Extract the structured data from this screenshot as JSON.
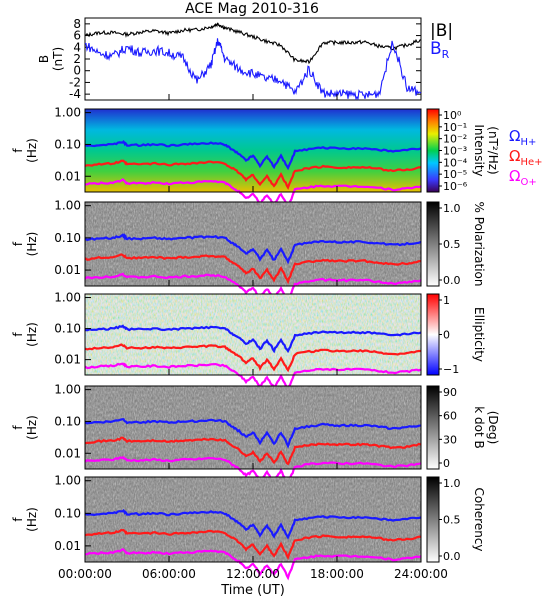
{
  "figure": {
    "title": "ACE Mag 2010-316"
  },
  "colors": {
    "black": "#000000",
    "blue": "#1a1aff",
    "red": "#ff1a1a",
    "magenta": "#ff00ff"
  },
  "chart_data": [
    {
      "type": "line",
      "panel": "B",
      "ylabel": "B",
      "ylabel_unit": "(nT)",
      "ylim": [
        -5,
        9
      ],
      "yticks": [
        "8",
        "6",
        "4",
        "2",
        "0",
        "-2",
        "-4"
      ],
      "xlim": [
        "00:00:00",
        "24:00:00"
      ],
      "x_hours": [
        0,
        1,
        2,
        3,
        4,
        5,
        6,
        7,
        8,
        9,
        9.5,
        10,
        11,
        12,
        13,
        14,
        15,
        16,
        17,
        18,
        19,
        20,
        21,
        22,
        23,
        24
      ],
      "series": [
        {
          "name": "|B|",
          "color": "#000000",
          "values": [
            6,
            6.5,
            6.5,
            6.2,
            6.6,
            6.8,
            6.4,
            6.9,
            7,
            7.5,
            8,
            7.3,
            6.6,
            5.8,
            5,
            4.3,
            1.8,
            1.5,
            4.8,
            4.8,
            4.8,
            4.9,
            4.2,
            3.8,
            4.4,
            5.3
          ]
        },
        {
          "name": "B_R",
          "color": "#1a1aff",
          "values": [
            4.5,
            3,
            2.5,
            4,
            3,
            3.5,
            3,
            2.2,
            -1.8,
            1,
            5.2,
            2,
            0.3,
            -0.5,
            -1.5,
            -1.5,
            -3.8,
            0.3,
            -3.8,
            -4,
            -4,
            -4.3,
            -3.8,
            5,
            -3,
            -3.8
          ]
        }
      ],
      "legend": [
        "|B|",
        "B_R"
      ]
    },
    {
      "type": "heatmap",
      "panel": "Intensity",
      "ylabel": "f",
      "ylabel_unit": "(Hz)",
      "yticks": [
        "1.00",
        "0.10",
        "0.01"
      ],
      "colorbar": {
        "label": "Intensity",
        "unit": "(nT²/Hz)",
        "ticks": [
          "10⁰",
          "10⁻¹",
          "10⁻²",
          "10⁻³",
          "10⁻⁴",
          "10⁻⁵",
          "10⁻⁶"
        ],
        "scale": "rainbow"
      },
      "legend": [
        "ΩH+",
        "ΩHe+",
        "ΩO+"
      ]
    },
    {
      "type": "heatmap",
      "panel": "Polarization",
      "ylabel": "f",
      "ylabel_unit": "(Hz)",
      "yticks": [
        "1.00",
        "0.10",
        "0.01"
      ],
      "colorbar": {
        "label": "% Polarization",
        "ticks": [
          "1.0",
          "0.5",
          "0.0"
        ],
        "scale": "gray"
      }
    },
    {
      "type": "heatmap",
      "panel": "Ellipticity",
      "ylabel": "f",
      "ylabel_unit": "(Hz)",
      "yticks": [
        "1.00",
        "0.10",
        "0.01"
      ],
      "colorbar": {
        "label": "Ellipticity",
        "ticks": [
          "1",
          "0",
          "−1"
        ],
        "scale": "blue-white-red"
      }
    },
    {
      "type": "heatmap",
      "panel": "k dot B",
      "ylabel": "f",
      "ylabel_unit": "(Hz)",
      "yticks": [
        "1.00",
        "0.10",
        "0.01"
      ],
      "colorbar": {
        "label": "k dot B",
        "unit": "(Deg)",
        "ticks": [
          "90",
          "60",
          "30",
          "0"
        ],
        "scale": "gray"
      }
    },
    {
      "type": "heatmap",
      "panel": "Coherency",
      "ylabel": "f",
      "ylabel_unit": "(Hz)",
      "yticks": [
        "1.00",
        "0.10",
        "0.01"
      ],
      "colorbar": {
        "label": "Coherency",
        "ticks": [
          "1.0",
          "0.5",
          "0.0"
        ],
        "scale": "gray"
      },
      "xticks": [
        "00:00:00",
        "06:00:00",
        "12:00:00",
        "18:00:00",
        "24:00:00"
      ],
      "xlabel": "Time (UT)"
    }
  ],
  "gyrofrequency_lines": {
    "x_hours": [
      0,
      1,
      2,
      2.7,
      3,
      4,
      5,
      6,
      7,
      8,
      9,
      10,
      10.5,
      11,
      11.5,
      12,
      12.5,
      13,
      13.5,
      14,
      14.5,
      15,
      16,
      17,
      18,
      19,
      20,
      21,
      22,
      23,
      24
    ],
    "H+": [
      0.09,
      0.095,
      0.1,
      0.12,
      0.095,
      0.095,
      0.1,
      0.092,
      0.1,
      0.103,
      0.11,
      0.1,
      0.07,
      0.05,
      0.032,
      0.045,
      0.022,
      0.042,
      0.02,
      0.045,
      0.018,
      0.06,
      0.07,
      0.08,
      0.075,
      0.075,
      0.075,
      0.068,
      0.06,
      0.066,
      0.075
    ],
    "He+": [
      0.022,
      0.024,
      0.025,
      0.03,
      0.024,
      0.024,
      0.025,
      0.023,
      0.025,
      0.026,
      0.028,
      0.025,
      0.018,
      0.013,
      0.008,
      0.011,
      0.0055,
      0.01,
      0.005,
      0.011,
      0.0045,
      0.015,
      0.018,
      0.02,
      0.019,
      0.019,
      0.019,
      0.017,
      0.015,
      0.016,
      0.019
    ],
    "O+": [
      0.0056,
      0.006,
      0.0063,
      0.0075,
      0.006,
      0.006,
      0.0063,
      0.0058,
      0.0063,
      0.0065,
      0.007,
      0.0063,
      0.0045,
      0.0033,
      0.002,
      0.0028,
      0.0014,
      0.0026,
      0.0013,
      0.0028,
      0.0011,
      0.0038,
      0.0045,
      0.005,
      0.0048,
      0.0048,
      0.0048,
      0.0043,
      0.0038,
      0.0041,
      0.0048
    ]
  }
}
